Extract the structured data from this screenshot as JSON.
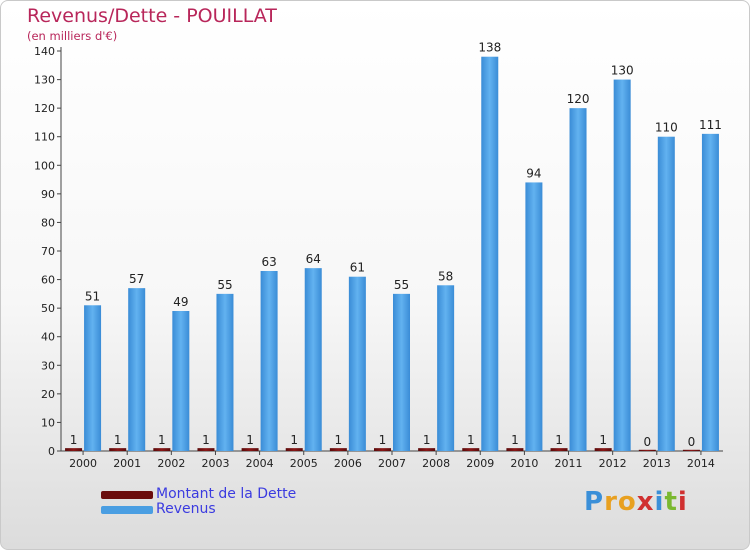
{
  "header": {
    "title": "Revenus/Dette - POUILLAT",
    "subtitle": "(en milliers d'€)"
  },
  "chart_data": {
    "type": "bar",
    "categories": [
      "2000",
      "2001",
      "2002",
      "2003",
      "2004",
      "2005",
      "2006",
      "2007",
      "2008",
      "2009",
      "2010",
      "2011",
      "2012",
      "2013",
      "2014"
    ],
    "series": [
      {
        "name": "Montant de la Dette",
        "color": "#6b0d0d",
        "values": [
          1,
          1,
          1,
          1,
          1,
          1,
          1,
          1,
          1,
          1,
          1,
          1,
          1,
          0,
          0
        ]
      },
      {
        "name": "Revenus",
        "color": "#4a9ee2",
        "values": [
          51,
          57,
          49,
          55,
          63,
          64,
          61,
          55,
          58,
          138,
          94,
          120,
          130,
          110,
          111
        ]
      }
    ],
    "ylim": [
      0,
      140
    ],
    "yticks": [
      0,
      10,
      20,
      30,
      40,
      50,
      60,
      70,
      80,
      90,
      100,
      110,
      120,
      130,
      140
    ],
    "grid": false,
    "legend_position": "bottom-left"
  },
  "legend": {
    "items": [
      {
        "label": "Montant de la Dette",
        "color": "#6b0d0d"
      },
      {
        "label": "Revenus",
        "color": "#4a9ee2"
      }
    ]
  },
  "logo": {
    "text": "Proxiti",
    "letters": [
      {
        "ch": "P",
        "color": "#3a8fd8"
      },
      {
        "ch": "r",
        "color": "#e8a020"
      },
      {
        "ch": "o",
        "color": "#e8a020"
      },
      {
        "ch": "x",
        "color": "#d03030"
      },
      {
        "ch": "i",
        "color": "#3a8fd8"
      },
      {
        "ch": "t",
        "color": "#7ab830"
      },
      {
        "ch": "i",
        "color": "#d03030"
      }
    ]
  }
}
